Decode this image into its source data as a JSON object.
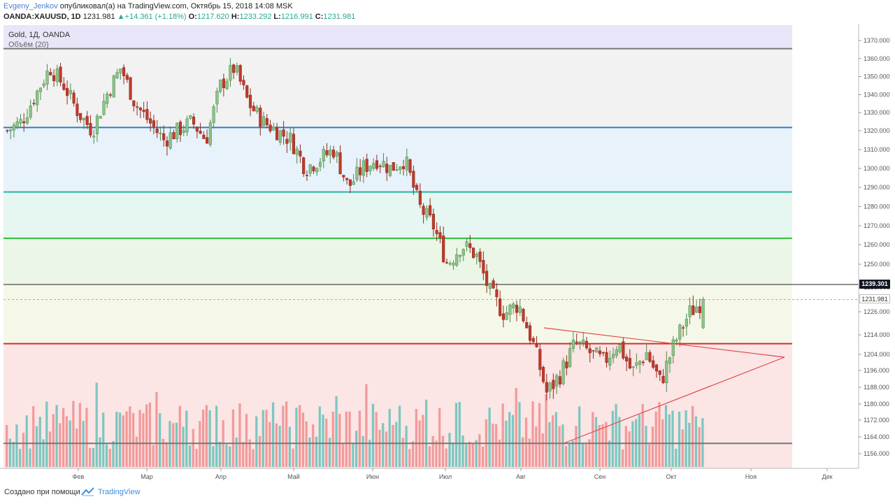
{
  "header": {
    "author": "Evgeny_Jenkov",
    "published": "опубликовал(а) на TradingView.com, Октябрь 15, 2018 14:08 MSK",
    "symbol": "OANDA:XAUUSD, 1D",
    "last": "1231.981",
    "change_arrow": "▲",
    "change": "+14.361 (+1.18%)",
    "o_label": "O:",
    "o_value": "1217.620",
    "h_label": "H:",
    "h_value": "1233.292",
    "l_label": "L:",
    "l_value": "1216.991",
    "c_label": "C:",
    "c_value": "1231.981"
  },
  "legend": {
    "title": "Gold, 1Д, OANDA",
    "volume": "Объём (20)"
  },
  "price_labels": {
    "line": "1239.301",
    "close": "1231.981"
  },
  "footer": {
    "made_with": "Создано при помощи",
    "brand": "TradingView"
  },
  "colors": {
    "up": "#26a69a",
    "down": "#ef5350",
    "candle_up": "#8bc48a",
    "candle_down": "#c0392b",
    "blue_line": "#2e7dc4",
    "teal_line": "#26b5a0",
    "green_line": "#2cbf3c",
    "red_line": "#d32f2f",
    "triangle": "#e04a4a"
  },
  "chart_data": {
    "type": "candlestick",
    "y_axis_ticks": [
      1370,
      1360,
      1350,
      1340,
      1330,
      1320,
      1310,
      1300,
      1290,
      1280,
      1270,
      1260,
      1250,
      1238,
      1226,
      1214,
      1204,
      1196,
      1188,
      1180,
      1172,
      1164,
      1156
    ],
    "x_axis_labels": [
      "Фев",
      "Мар",
      "Апр",
      "Май",
      "Июн",
      "Июл",
      "Авг",
      "Сен",
      "Окт",
      "Ноя",
      "Дек"
    ],
    "levels": [
      {
        "name": "top-gray",
        "price": 1365.5
      },
      {
        "name": "blue",
        "price": 1321.8
      },
      {
        "name": "teal",
        "price": 1287.6
      },
      {
        "name": "green",
        "price": 1263.4
      },
      {
        "name": "black",
        "price": 1239.3
      },
      {
        "name": "red",
        "price": 1209.5
      },
      {
        "name": "bottom-gray",
        "price": 1160.9
      }
    ],
    "close_price": 1231.981,
    "last_ohlc": {
      "open": 1217.62,
      "high": 1233.292,
      "low": 1216.991,
      "close": 1231.981
    },
    "candles_close_path": [
      1320,
      1325,
      1340,
      1355,
      1345,
      1330,
      1320,
      1340,
      1355,
      1335,
      1325,
      1315,
      1320,
      1325,
      1315,
      1345,
      1355,
      1335,
      1325,
      1320,
      1315,
      1300,
      1305,
      1310,
      1290,
      1300,
      1305,
      1300,
      1305,
      1280,
      1270,
      1250,
      1260,
      1255,
      1235,
      1225,
      1230,
      1210,
      1185,
      1195,
      1210,
      1205,
      1200,
      1210,
      1195,
      1205,
      1190,
      1210,
      1225,
      1232
    ]
  }
}
